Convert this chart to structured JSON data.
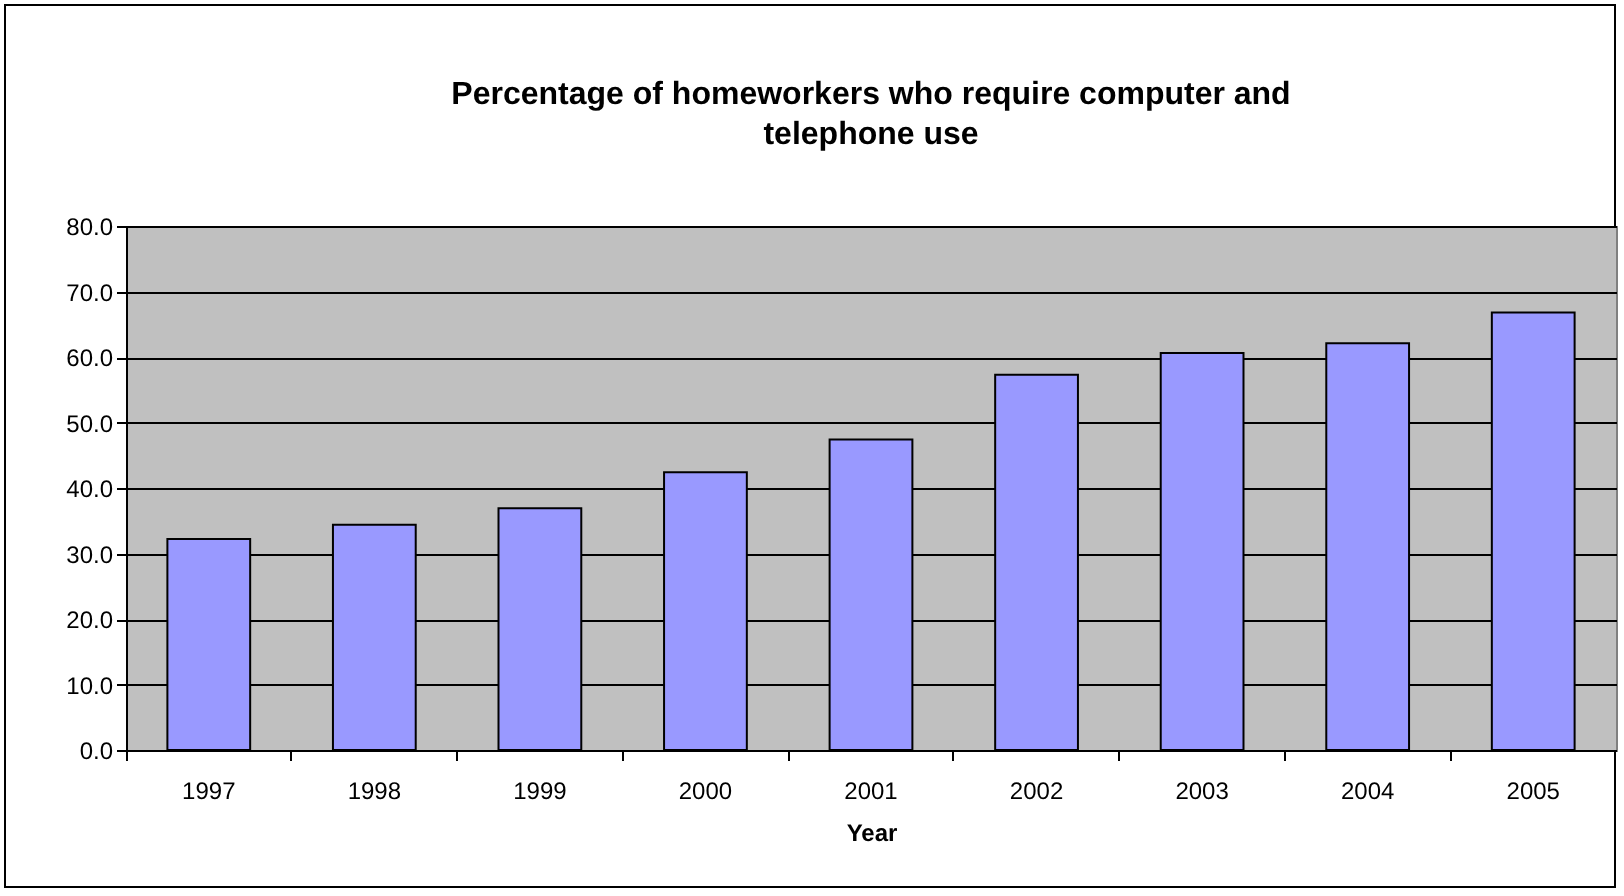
{
  "chart_data": {
    "type": "bar",
    "title": "Percentage of homeworkers who require computer and telephone use",
    "xlabel": "Year",
    "categories": [
      "1997",
      "1998",
      "1999",
      "2000",
      "2001",
      "2002",
      "2003",
      "2004",
      "2005"
    ],
    "values": [
      32.2,
      34.4,
      36.9,
      42.4,
      47.4,
      57.3,
      60.6,
      62.1,
      66.8
    ],
    "color": "#9999ff",
    "ylim": [
      0,
      80
    ],
    "yticks": [
      {
        "value": 0,
        "label": "0.0"
      },
      {
        "value": 10,
        "label": "10.0"
      },
      {
        "value": 20,
        "label": "20.0"
      },
      {
        "value": 30,
        "label": "30.0"
      },
      {
        "value": 40,
        "label": "40.0"
      },
      {
        "value": 50,
        "label": "50.0"
      },
      {
        "value": 60,
        "label": "60.0"
      },
      {
        "value": 70,
        "label": "70.0"
      },
      {
        "value": 80,
        "label": "80.0"
      }
    ],
    "grid": "y"
  }
}
